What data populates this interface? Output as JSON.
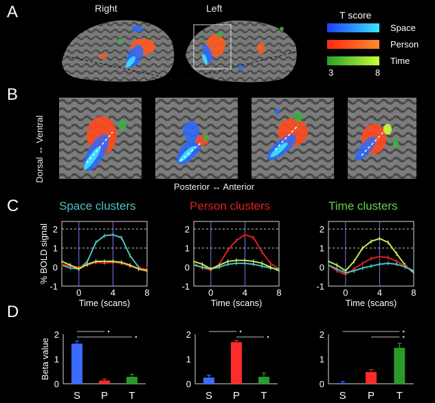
{
  "panels": {
    "a": "A",
    "b": "B",
    "c": "C",
    "d": "D"
  },
  "hemispheres": {
    "right": "Right",
    "left": "Left"
  },
  "legend": {
    "title": "T score",
    "items": [
      {
        "label": "Space",
        "color_from": "#1f3dff",
        "color_to": "#38e8ff"
      },
      {
        "label": "Person",
        "color_from": "#ff2a10",
        "color_to": "#ff8a30"
      },
      {
        "label": "Time",
        "color_from": "#2aa02a",
        "color_to": "#c8ff3a"
      }
    ],
    "min": "3",
    "max": "8"
  },
  "panel_b": {
    "dorsal_ventral": "Dorsal ↔ Ventral",
    "posterior_anterior": "Posterior ↔ Anterior"
  },
  "colors": {
    "space": "#4fc3c8",
    "person": "#e02020",
    "time": "#c8e860"
  },
  "chart_data": [
    {
      "type": "line",
      "title": "Space clusters",
      "title_color": "#4fc3c8",
      "ylabel": "% BOLD signal",
      "xlabel": "Time (scans)",
      "x": [
        -2,
        -1,
        0,
        1,
        2,
        3,
        4,
        5,
        6,
        7,
        8
      ],
      "xticks": [
        0,
        4,
        8
      ],
      "yticks": [
        -1,
        0,
        1,
        2
      ],
      "ylim": [
        -1,
        2.4
      ],
      "xlim": [
        -2,
        8
      ],
      "series": [
        {
          "color": "#4fc3c8",
          "values": [
            0.1,
            -0.05,
            -0.1,
            0.3,
            1.3,
            1.65,
            1.7,
            1.55,
            0.6,
            0.0,
            -0.2
          ]
        },
        {
          "color": "#e02020",
          "values": [
            0.15,
            0.05,
            0.0,
            0.1,
            0.25,
            0.2,
            0.25,
            0.2,
            0.05,
            -0.05,
            -0.1
          ]
        },
        {
          "color": "#c8e860",
          "values": [
            0.3,
            0.1,
            -0.1,
            0.15,
            0.3,
            0.3,
            0.3,
            0.25,
            0.1,
            -0.1,
            -0.2
          ]
        }
      ]
    },
    {
      "type": "line",
      "title": "Person clusters",
      "title_color": "#e02020",
      "ylabel": "",
      "xlabel": "Time (scans)",
      "x": [
        -2,
        -1,
        0,
        1,
        2,
        3,
        4,
        5,
        6,
        7,
        8
      ],
      "xticks": [
        0,
        4,
        8
      ],
      "yticks": [
        -1,
        0,
        1,
        2
      ],
      "ylim": [
        -1,
        2.4
      ],
      "xlim": [
        -2,
        8
      ],
      "series": [
        {
          "color": "#e02020",
          "values": [
            0.2,
            -0.05,
            -0.15,
            0.15,
            0.9,
            1.4,
            1.7,
            1.55,
            0.8,
            0.2,
            -0.1
          ]
        },
        {
          "color": "#4fc3c8",
          "values": [
            0.1,
            0.0,
            -0.1,
            0.0,
            0.15,
            0.2,
            0.2,
            0.15,
            0.05,
            -0.05,
            -0.1
          ]
        },
        {
          "color": "#c8e860",
          "values": [
            0.3,
            0.15,
            -0.1,
            0.1,
            0.3,
            0.35,
            0.35,
            0.3,
            0.2,
            0.0,
            -0.2
          ]
        }
      ]
    },
    {
      "type": "line",
      "title": "Time clusters",
      "title_color": "#6ad050",
      "ylabel": "",
      "xlabel": "Time (scans)",
      "x": [
        -2,
        -1,
        0,
        1,
        2,
        3,
        4,
        5,
        6,
        7,
        8
      ],
      "xticks": [
        0,
        4,
        8
      ],
      "yticks": [
        -1,
        0,
        1,
        2
      ],
      "ylim": [
        -1,
        2.4
      ],
      "xlim": [
        -2,
        8
      ],
      "series": [
        {
          "color": "#c8e860",
          "values": [
            0.3,
            0.1,
            -0.2,
            0.3,
            1.0,
            1.35,
            1.5,
            1.3,
            0.7,
            0.1,
            -0.3
          ]
        },
        {
          "color": "#e02020",
          "values": [
            0.1,
            -0.2,
            -0.4,
            -0.1,
            0.2,
            0.45,
            0.55,
            0.5,
            0.3,
            0.05,
            -0.2
          ]
        },
        {
          "color": "#4fc3c8",
          "values": [
            0.1,
            -0.1,
            -0.3,
            -0.2,
            -0.05,
            0.05,
            0.15,
            0.2,
            0.15,
            0.0,
            -0.2
          ]
        }
      ]
    },
    {
      "type": "bar",
      "ylabel": "Beta value",
      "categories": [
        "S",
        "P",
        "T"
      ],
      "colors": [
        "#3a6aff",
        "#ff2a2a",
        "#2a9a2a"
      ],
      "values": [
        1.62,
        0.13,
        0.28
      ],
      "errors": [
        0.1,
        0.06,
        0.1
      ],
      "ylim": [
        0,
        2
      ],
      "yticks": [
        0,
        1,
        2
      ],
      "significance": [
        [
          "S",
          "P"
        ],
        [
          "S",
          "T"
        ]
      ]
    },
    {
      "type": "bar",
      "ylabel": "",
      "categories": [
        "S",
        "P",
        "T"
      ],
      "colors": [
        "#3a6aff",
        "#ff2a2a",
        "#2a9a2a"
      ],
      "values": [
        0.25,
        1.68,
        0.28
      ],
      "errors": [
        0.1,
        0.06,
        0.15
      ],
      "ylim": [
        0,
        2
      ],
      "yticks": [
        0,
        1,
        2
      ],
      "significance": [
        [
          "S",
          "P"
        ],
        [
          "P",
          "T"
        ]
      ]
    },
    {
      "type": "bar",
      "ylabel": "",
      "categories": [
        "S",
        "P",
        "T"
      ],
      "colors": [
        "#3a6aff",
        "#ff2a2a",
        "#2a9a2a"
      ],
      "values": [
        0.03,
        0.47,
        1.45
      ],
      "errors": [
        0.06,
        0.1,
        0.18
      ],
      "ylim": [
        0,
        2
      ],
      "yticks": [
        0,
        1,
        2
      ],
      "significance": [
        [
          "S",
          "T"
        ],
        [
          "P",
          "T"
        ]
      ]
    }
  ]
}
